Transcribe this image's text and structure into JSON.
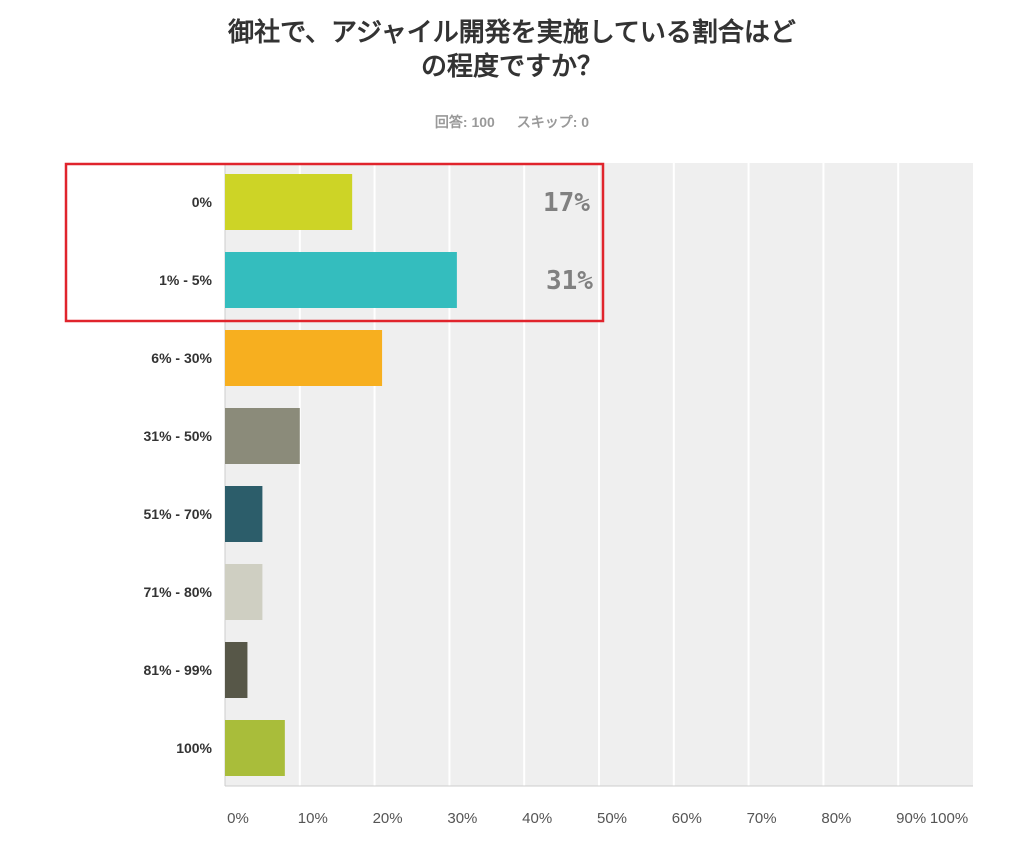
{
  "chart_data": {
    "type": "bar",
    "orientation": "horizontal",
    "title": "御社で、アジャイル開発を実施している割合はどの程度ですか？",
    "title_lines": [
      "御社で、アジャイル開発を実施している割合はど",
      "の程度ですか？"
    ],
    "responses_label": "回答: 100",
    "skipped_label": "スキップ: 0",
    "categories": [
      "0%",
      "1% - 5%",
      "6% - 30%",
      "31% - 50%",
      "51% - 70%",
      "71% - 80%",
      "81% - 99%",
      "100%"
    ],
    "values": [
      17,
      31,
      21,
      10,
      5,
      5,
      3,
      8
    ],
    "colors": [
      "#cdd426",
      "#34bdbe",
      "#f7af1f",
      "#8b8b7a",
      "#2c5d6a",
      "#cfcfc2",
      "#575748",
      "#a9bd3a"
    ],
    "data_labels": [
      {
        "category": "0%",
        "text": "17%"
      },
      {
        "category": "1% - 5%",
        "text": "31%"
      }
    ],
    "xlim": [
      0,
      100
    ],
    "x_ticks": [
      "0%",
      "10%",
      "20%",
      "30%",
      "40%",
      "50%",
      "60%",
      "70%",
      "80%",
      "90%",
      "100%"
    ],
    "grid": true,
    "highlight": {
      "categories": [
        "0%",
        "1% - 5%"
      ],
      "color": "#e0242c"
    },
    "background_color": "#efefef",
    "gridline_color": "#ffffff"
  }
}
